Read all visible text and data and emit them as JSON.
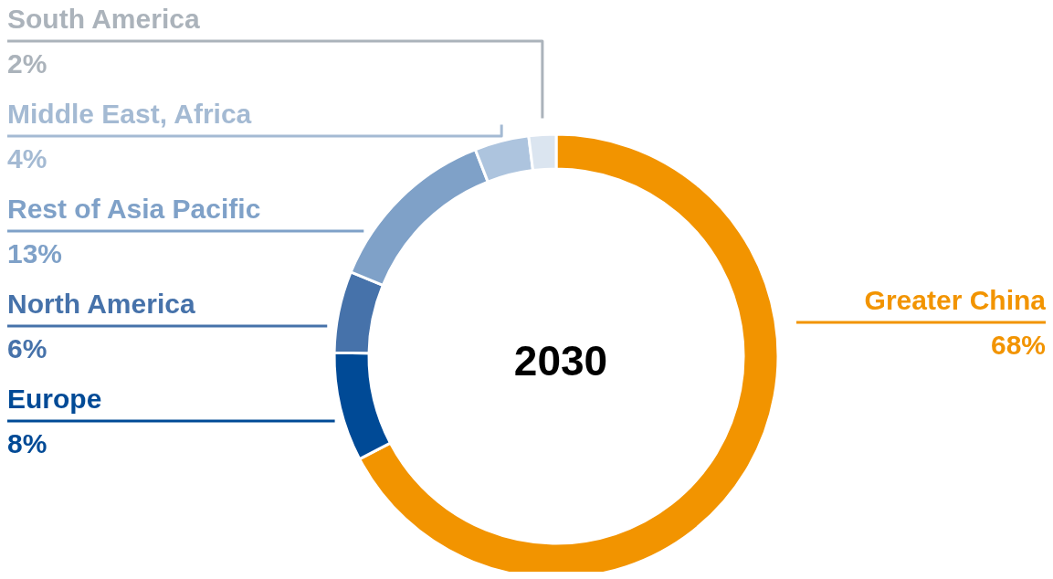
{
  "chart_data": {
    "type": "donut",
    "title": "2030",
    "categories": [
      "Greater China",
      "Europe",
      "North America",
      "Rest of Asia Pacific",
      "Middle East, Africa",
      "South America"
    ],
    "values": [
      68,
      8,
      6,
      13,
      4,
      2
    ],
    "value_labels": [
      "68%",
      "8%",
      "6%",
      "13%",
      "4%",
      "2%"
    ],
    "colors": [
      "#f29400",
      "#004a96",
      "#4672aa",
      "#7fa1c8",
      "#adc4de",
      "#dbe5f0"
    ],
    "legend": false
  }
}
